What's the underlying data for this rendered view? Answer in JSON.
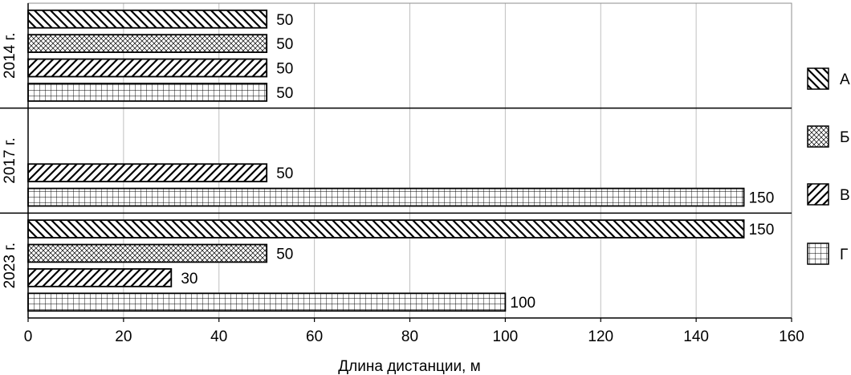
{
  "chart_data": {
    "type": "bar",
    "orientation": "horizontal",
    "title": "",
    "xlabel": "Длина дистанции, м",
    "ylabel": "",
    "xlim": [
      0,
      160
    ],
    "x_ticks": [
      "0",
      "20",
      "40",
      "60",
      "80",
      "100",
      "120",
      "140",
      "160"
    ],
    "grid": "vertical",
    "legend_position": "right",
    "series": [
      {
        "name": "А",
        "pattern": "diagonal-back"
      },
      {
        "name": "Б",
        "pattern": "crosshatch"
      },
      {
        "name": "В",
        "pattern": "diagonal-forward"
      },
      {
        "name": "Г",
        "pattern": "grid"
      }
    ],
    "groups": [
      {
        "label": "2014 г.",
        "values": {
          "А": 50,
          "Б": 50,
          "В": 50,
          "Г": 50
        }
      },
      {
        "label": "2017 г.",
        "values": {
          "А": null,
          "Б": null,
          "В": 50,
          "Г": 150
        }
      },
      {
        "label": "2023 г.",
        "values": {
          "А": 150,
          "Б": 50,
          "В": 30,
          "Г": 100
        }
      }
    ],
    "colors": {
      "bar_fill": "#ffffff",
      "bar_stroke": "#000000",
      "gridline": "#bfbfbf"
    }
  }
}
